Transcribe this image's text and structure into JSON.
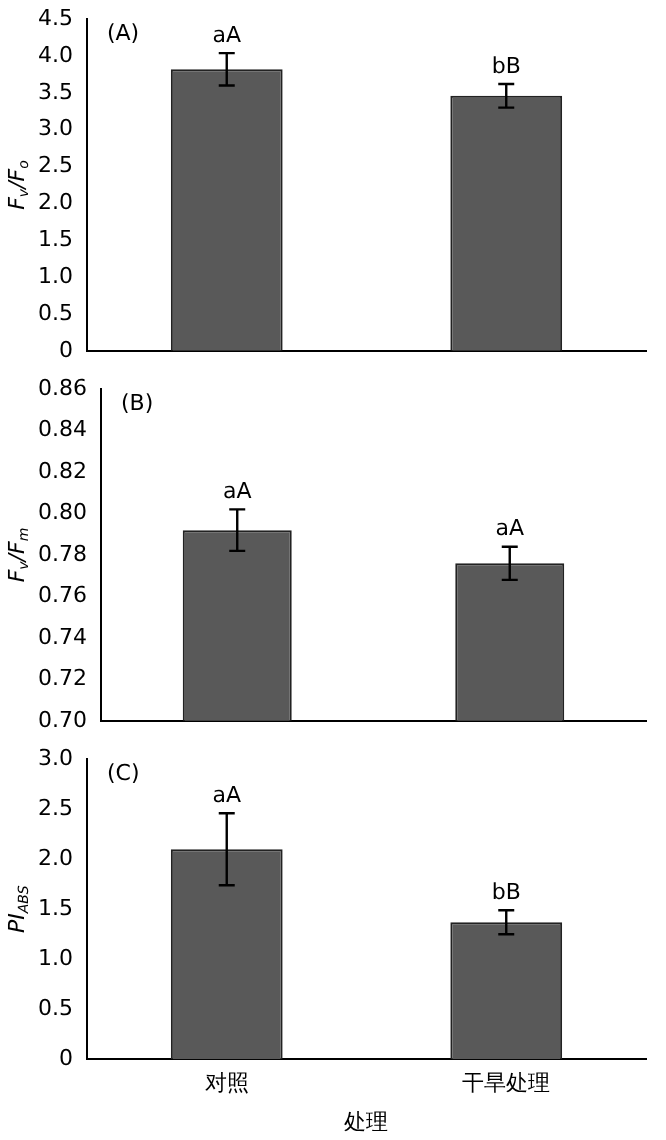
{
  "chart_data": [
    {
      "type": "bar",
      "ylabel": "F$_{v}$/F$_{o}$",
      "categories": [
        "对照",
        "干旱处理"
      ],
      "values": [
        3.82,
        3.46
      ],
      "errors": [
        0.22,
        0.16
      ],
      "color": "#595959",
      "ylim": [
        0,
        4.5
      ],
      "yticks": [
        0,
        0.5,
        {
          "value": 1,
          "label": "1.0"
        },
        1.5,
        {
          "value": 2,
          "label": "2.0"
        },
        2.5,
        {
          "value": 3,
          "label": "3.0"
        },
        3.5,
        {
          "value": 4,
          "label": "4.0"
        },
        4.5
      ],
      "tick_labels": "y",
      "annotations": [
        "(A)",
        {
          "text": "aA",
          "x": "对照",
          "y": 4.04
        },
        {
          "text": "bB",
          "x": "干旱处理",
          "y": 3.62
        }
      ]
    },
    {
      "type": "bar",
      "ylabel": "F$_{v}$/F$_{m}$",
      "categories": [
        "对照",
        "干旱处理"
      ],
      "values": [
        0.792,
        0.776
      ],
      "errors": [
        0.01,
        0.008
      ],
      "color": "#595959",
      "ylim": [
        0.7,
        0.86
      ],
      "yticks": [
        {
          "value": 0.7,
          "label": "0.70"
        },
        0.72,
        0.74,
        0.76,
        0.78,
        {
          "value": 0.8,
          "label": "0.80"
        },
        0.82,
        0.84,
        0.86
      ],
      "tick_labels": "y",
      "annotations": [
        "(B)",
        {
          "text": "aA",
          "x": "对照",
          "y": 0.802
        },
        {
          "text": "aA",
          "x": "干旱处理",
          "y": 0.784
        }
      ]
    },
    {
      "type": "bar",
      "ylabel": "PI$_{ABS}$",
      "xlabel": "处理",
      "categories": [
        "对照",
        "干旱处理"
      ],
      "values": [
        2.1,
        1.37
      ],
      "errors": [
        0.36,
        0.12
      ],
      "color": "#595959",
      "ylim": [
        0,
        3
      ],
      "yticks": [
        0,
        0.5,
        {
          "value": 1,
          "label": "1.0"
        },
        1.5,
        {
          "value": 2,
          "label": "2.0"
        },
        2.5,
        {
          "value": 3,
          "label": "3.0"
        }
      ],
      "annotations": [
        "(C)",
        {
          "text": "aA",
          "x": "对照",
          "y": 2.46
        },
        {
          "text": "bB",
          "x": "干旱处理",
          "y": 1.49
        }
      ]
    }
  ]
}
